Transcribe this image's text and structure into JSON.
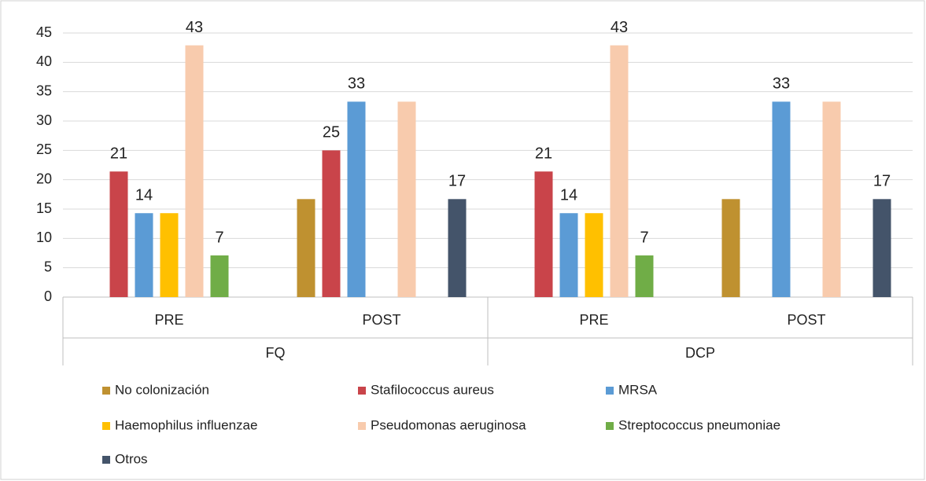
{
  "chart_data": {
    "type": "bar",
    "categories": [
      "PRE",
      "POST",
      "PRE",
      "POST"
    ],
    "groups": [
      "FQ",
      "DCP"
    ],
    "series": [
      {
        "name": "No colonización",
        "color": "#bf9130",
        "values": [
          null,
          16.7,
          null,
          16.7
        ],
        "value_labels": [
          null,
          null,
          null,
          null
        ]
      },
      {
        "name": "Stafilococcus aureus",
        "color": "#c9444a",
        "values": [
          21.4,
          25,
          21.4,
          null
        ],
        "value_labels": [
          "21",
          "25",
          "21",
          null
        ]
      },
      {
        "name": "MRSA",
        "color": "#5b9bd5",
        "values": [
          14.3,
          33.3,
          14.3,
          33.3
        ],
        "value_labels": [
          "14",
          "33",
          "14",
          "33"
        ]
      },
      {
        "name": "Haemophilus influenzae",
        "color": "#ffc000",
        "values": [
          14.3,
          null,
          14.3,
          null
        ],
        "value_labels": [
          null,
          null,
          null,
          null
        ]
      },
      {
        "name": "Pseudomonas aeruginosa",
        "color": "#f8cbad",
        "values": [
          42.9,
          33.3,
          42.9,
          33.3
        ],
        "value_labels": [
          "43",
          null,
          "43",
          null
        ]
      },
      {
        "name": "Streptococcus pneumoniae",
        "color": "#70ad47",
        "values": [
          7.1,
          null,
          7.1,
          null
        ],
        "value_labels": [
          "7",
          null,
          "7",
          null
        ]
      },
      {
        "name": "Otros",
        "color": "#44546a",
        "values": [
          null,
          16.7,
          null,
          16.7
        ],
        "value_labels": [
          null,
          "17",
          null,
          "17"
        ]
      }
    ],
    "ylim": [
      0,
      45
    ],
    "yticks": [
      0,
      5,
      10,
      15,
      20,
      25,
      30,
      35,
      40,
      45
    ],
    "grid": true
  }
}
